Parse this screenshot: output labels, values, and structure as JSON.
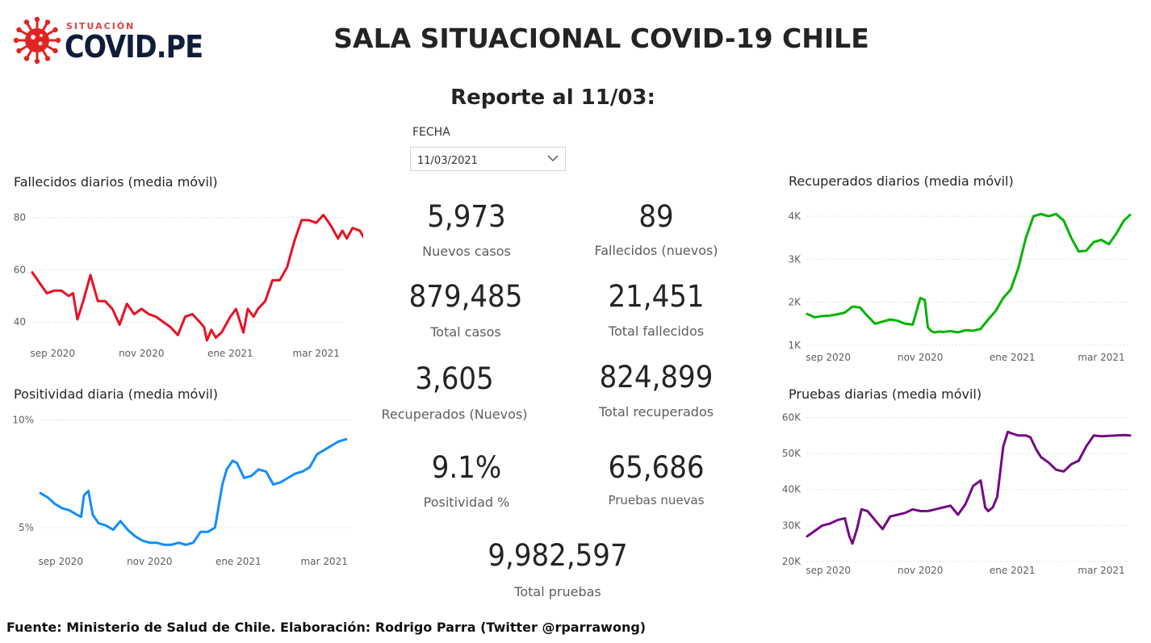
{
  "logo": {
    "sub": "SITUACIÓN",
    "main": "COVID.PE",
    "icon": "virus-icon",
    "color": "#e02424"
  },
  "header": {
    "title": "SALA SITUACIONAL COVID-19 CHILE",
    "report": "Reporte al 11/03:"
  },
  "filter": {
    "label": "FECHA",
    "value": "11/03/2021",
    "icon": "chevron-down-icon"
  },
  "kpis": {
    "nuevos_casos": {
      "value": "5,973",
      "label": "Nuevos casos"
    },
    "fallecidos_nuevos": {
      "value": "89",
      "label": "Fallecidos (nuevos)"
    },
    "total_casos": {
      "value": "879,485",
      "label": "Total casos"
    },
    "total_fallecidos": {
      "value": "21,451",
      "label": "Total fallecidos"
    },
    "recuperados_nuevos": {
      "value": "3,605",
      "label": "Recuperados (Nuevos)"
    },
    "total_recuperados": {
      "value": "824,899",
      "label": "Total recuperados"
    },
    "positividad": {
      "value": "9.1%",
      "label": "Positividad %"
    },
    "pruebas_nuevas": {
      "value": "65,686",
      "label": "Pruebas nuevas"
    },
    "total_pruebas": {
      "value": "9,982,597",
      "label": "Total pruebas"
    }
  },
  "footer": "Fuente: Ministerio de Salud de Chile. Elaboración: Rodrigo Parra (Twitter @rparrawong)",
  "chart_data": [
    {
      "id": "fallecidos",
      "type": "line",
      "title": "Fallecidos diarios (media móvil)",
      "color": "#e81123",
      "ylim": [
        32,
        83
      ],
      "yticks": [
        40,
        60,
        80
      ],
      "ytick_labels": [
        "40",
        "60",
        "80"
      ],
      "xticks": [
        "sep 2020",
        "nov 2020",
        "ene 2021",
        "mar 2021"
      ],
      "xtick_pos": [
        14,
        75,
        136,
        195
      ],
      "x": [
        0,
        5,
        10,
        15,
        20,
        25,
        28,
        31,
        35,
        40,
        45,
        50,
        55,
        60,
        65,
        70,
        75,
        80,
        85,
        90,
        95,
        100,
        105,
        110,
        115,
        118,
        120,
        123,
        126,
        130,
        133,
        136,
        140,
        145,
        148,
        152,
        155,
        160,
        165,
        170,
        175,
        180,
        185,
        190,
        195,
        200,
        205,
        210,
        213,
        216,
        220,
        225,
        228,
        232,
        236
      ],
      "y": [
        59,
        55,
        51,
        52,
        52,
        50,
        51,
        41,
        48,
        58,
        48,
        48,
        45,
        39,
        47,
        43,
        45,
        43,
        42,
        40,
        38,
        35,
        42,
        43,
        40,
        38,
        33,
        37,
        34,
        36,
        39,
        42,
        45,
        36,
        45,
        42,
        45,
        48,
        56,
        56,
        61,
        71,
        79,
        79,
        78,
        81,
        77,
        72,
        75,
        72,
        76,
        75,
        72,
        72,
        75
      ]
    },
    {
      "id": "positividad",
      "type": "line",
      "title": "Positividad diaria (media móvil)",
      "color": "#118dff",
      "ylim": [
        4.1,
        10.2
      ],
      "yticks": [
        5,
        10
      ],
      "ytick_labels": [
        "5%",
        "10%"
      ],
      "xticks": [
        "sep 2020",
        "nov 2020",
        "ene 2021",
        "mar 2021"
      ],
      "xtick_pos": [
        14,
        75,
        136,
        195
      ],
      "x": [
        0,
        5,
        10,
        15,
        20,
        25,
        28,
        30,
        33,
        36,
        40,
        45,
        50,
        55,
        60,
        65,
        70,
        75,
        80,
        85,
        90,
        95,
        100,
        105,
        110,
        115,
        120,
        125,
        128,
        132,
        135,
        140,
        145,
        150,
        155,
        160,
        165,
        170,
        175,
        180,
        185,
        190,
        195,
        200,
        205,
        210
      ],
      "y": [
        6.6,
        6.4,
        6.1,
        5.9,
        5.8,
        5.6,
        5.5,
        6.5,
        6.7,
        5.6,
        5.2,
        5.1,
        4.9,
        5.3,
        4.9,
        4.6,
        4.4,
        4.3,
        4.3,
        4.2,
        4.2,
        4.3,
        4.2,
        4.3,
        4.8,
        4.8,
        5.0,
        7.0,
        7.7,
        8.1,
        8.0,
        7.3,
        7.4,
        7.7,
        7.6,
        7.0,
        7.1,
        7.3,
        7.5,
        7.6,
        7.8,
        8.4,
        8.6,
        8.8,
        9.0,
        9.1
      ]
    },
    {
      "id": "recuperados",
      "type": "line",
      "title": "Recuperados diarios (media móvil)",
      "color": "#00b400",
      "ylim": [
        1000,
        4150
      ],
      "yticks": [
        1000,
        2000,
        3000,
        4000
      ],
      "ytick_labels": [
        "1K",
        "2K",
        "3K",
        "4K"
      ],
      "xticks": [
        "sep 2020",
        "nov 2020",
        "ene 2021",
        "mar 2021"
      ],
      "xtick_pos": [
        14,
        75,
        136,
        195
      ],
      "x": [
        0,
        5,
        10,
        15,
        20,
        25,
        30,
        35,
        40,
        45,
        50,
        55,
        60,
        65,
        70,
        75,
        78,
        80,
        82,
        84,
        86,
        88,
        90,
        95,
        100,
        105,
        110,
        115,
        120,
        125,
        130,
        135,
        140,
        145,
        150,
        155,
        160,
        165,
        170,
        175,
        180,
        185,
        190,
        195,
        200,
        205,
        210,
        214
      ],
      "y": [
        1730,
        1650,
        1680,
        1690,
        1720,
        1760,
        1900,
        1880,
        1680,
        1500,
        1550,
        1600,
        1570,
        1500,
        1480,
        2100,
        2050,
        1420,
        1340,
        1300,
        1310,
        1320,
        1310,
        1330,
        1300,
        1350,
        1340,
        1380,
        1600,
        1800,
        2100,
        2300,
        2800,
        3500,
        4000,
        4050,
        4000,
        4050,
        3900,
        3500,
        3180,
        3200,
        3400,
        3450,
        3350,
        3600,
        3900,
        4030
      ]
    },
    {
      "id": "pruebas",
      "type": "line",
      "title": "Pruebas diarias (media móvil)",
      "color": "#750985",
      "ylim": [
        20000,
        61000
      ],
      "yticks": [
        20000,
        30000,
        40000,
        50000,
        60000
      ],
      "ytick_labels": [
        "20K",
        "30K",
        "40K",
        "50K",
        "60K"
      ],
      "xticks": [
        "sep 2020",
        "nov 2020",
        "ene 2021",
        "mar 2021"
      ],
      "xtick_pos": [
        14,
        75,
        136,
        195
      ],
      "x": [
        0,
        5,
        10,
        15,
        20,
        25,
        28,
        30,
        33,
        36,
        40,
        45,
        50,
        55,
        60,
        65,
        70,
        75,
        80,
        85,
        90,
        95,
        100,
        105,
        110,
        115,
        118,
        120,
        123,
        126,
        130,
        133,
        136,
        140,
        145,
        148,
        152,
        155,
        160,
        165,
        170,
        175,
        180,
        185,
        190,
        195,
        200,
        205,
        210,
        214
      ],
      "y": [
        27000,
        28500,
        30000,
        30500,
        31500,
        32000,
        27000,
        25000,
        29000,
        34500,
        34000,
        31500,
        29000,
        32500,
        33000,
        33500,
        34500,
        34000,
        34000,
        34500,
        35000,
        35500,
        33000,
        36000,
        41000,
        42500,
        35000,
        34000,
        35000,
        38000,
        52000,
        56000,
        55500,
        55000,
        55000,
        54500,
        51000,
        49000,
        47500,
        45500,
        45000,
        47000,
        48000,
        52000,
        55000,
        54800,
        54900,
        55000,
        55100,
        55000
      ]
    }
  ]
}
